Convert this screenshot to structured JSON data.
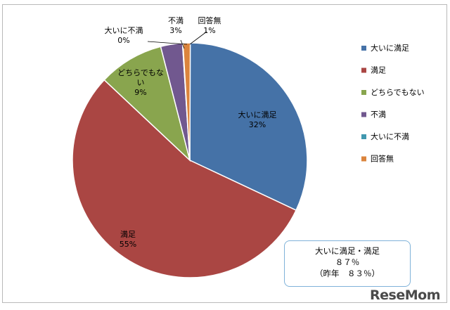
{
  "chart_data": {
    "type": "pie",
    "title": "",
    "legend_position": "right",
    "slices": [
      {
        "label": "大いに満足",
        "value": 32,
        "value_label": "32%",
        "color": "#4572a7"
      },
      {
        "label": "満足",
        "value": 55,
        "value_label": "55%",
        "color": "#aa4643"
      },
      {
        "label": "どちらでもない",
        "value": 9,
        "value_label": "9%",
        "color": "#89a54e"
      },
      {
        "label": "不満",
        "value": 3,
        "value_label": "3%",
        "color": "#71588f"
      },
      {
        "label": "大いに不満",
        "value": 0,
        "value_label": "0%",
        "color": "#4198af"
      },
      {
        "label": "回答無",
        "value": 1,
        "value_label": "1%",
        "color": "#db843d"
      }
    ]
  },
  "summary": {
    "line1": "大いに満足・満足",
    "line2": "８７％",
    "line3": "（昨年　８３％）"
  },
  "logo": {
    "text": "ReseMom"
  }
}
